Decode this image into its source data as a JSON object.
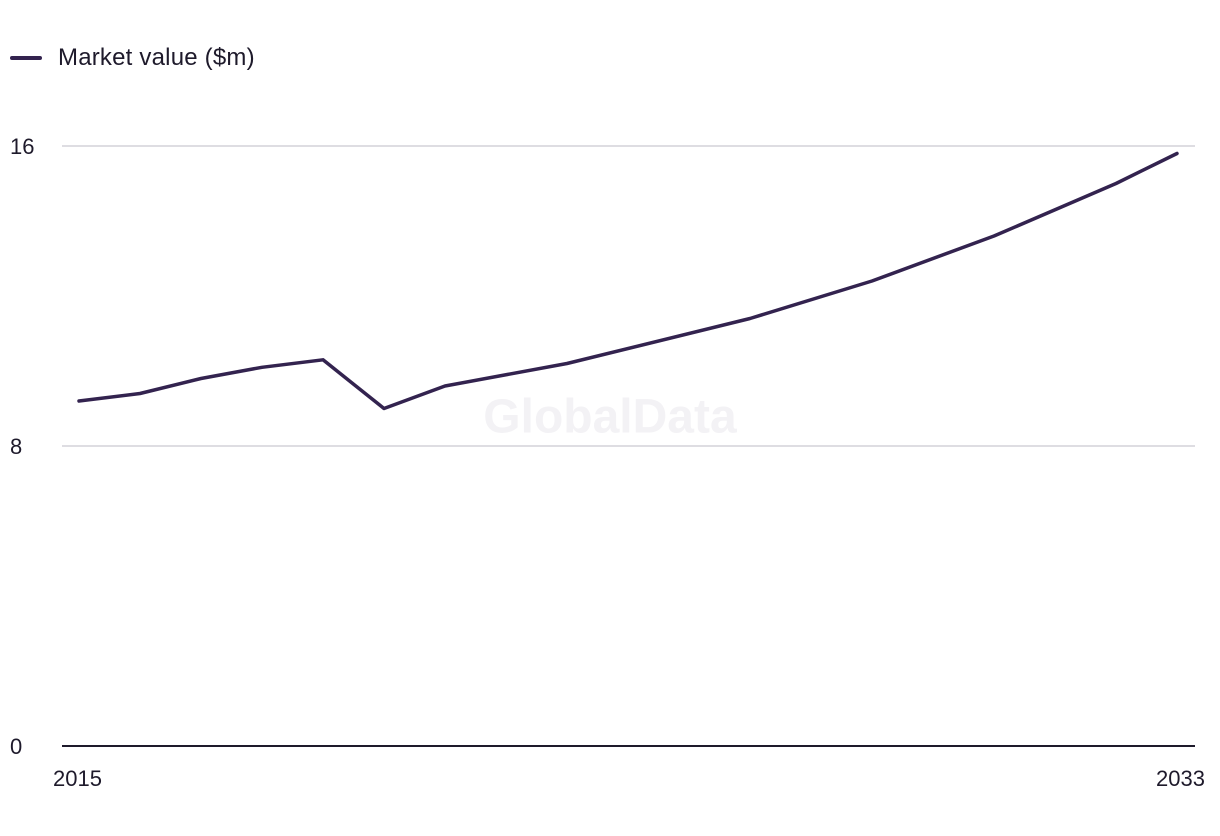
{
  "legend": {
    "label": "Market value ($m)"
  },
  "watermark": "GlobalData",
  "colors": {
    "series": "#33234f",
    "grid": "#d4d2d8",
    "baseline": "#1e1a2b",
    "text": "#1e1a2b"
  },
  "chart_data": {
    "type": "line",
    "title": "",
    "xlabel": "",
    "ylabel": "",
    "x": [
      2015,
      2016,
      2017,
      2018,
      2019,
      2020,
      2021,
      2023,
      2026,
      2028,
      2030,
      2032,
      2033
    ],
    "x_tick_labels": [
      "2015",
      "2033"
    ],
    "y_ticks": [
      0,
      8,
      16
    ],
    "y_tick_labels": [
      "0",
      "8",
      "16"
    ],
    "ylim": [
      0,
      16
    ],
    "xlim": [
      2015,
      2033
    ],
    "grid": true,
    "legend_position": "top-left",
    "series": [
      {
        "name": "Market value ($m)",
        "values": [
          9.2,
          9.4,
          9.8,
          10.1,
          10.3,
          9.0,
          9.6,
          10.2,
          11.4,
          12.4,
          13.6,
          15.0,
          15.8
        ]
      }
    ]
  }
}
